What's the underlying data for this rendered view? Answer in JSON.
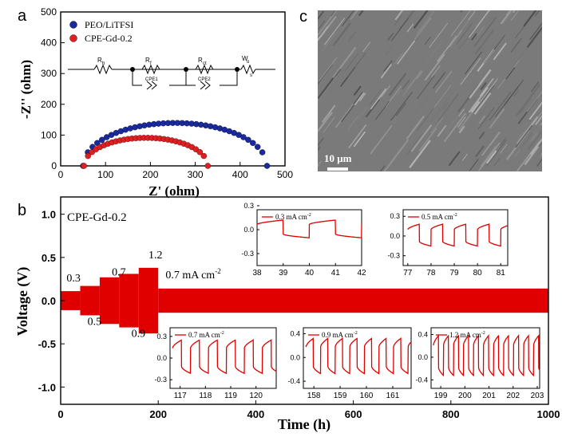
{
  "panel_labels": {
    "a": "a",
    "b": "b",
    "c": "c"
  },
  "colors": {
    "peo": "#1a2a9c",
    "cpe": "#e02020",
    "voltage": "#e00000",
    "sem_bg": "#7a7a7a"
  },
  "sem": {
    "scale_label": "10 μm"
  },
  "circuit": {
    "r_b": "R",
    "r_b_sub": "b",
    "r_f": "R",
    "r_f_sub": "f",
    "r_ct": "R",
    "r_ct_sub": "ct",
    "w": "W",
    "w_sub_top": "o",
    "w_sub_bot": "s",
    "cpe1": "CPE1",
    "cpe2": "CPE2"
  },
  "chart_data": [
    {
      "type": "scatter",
      "panel": "a",
      "xlabel": "Z' (ohm)",
      "ylabel": "-Z'' (ohm)",
      "xlim": [
        0,
        500
      ],
      "ylim": [
        0,
        500
      ],
      "xticks": [
        0,
        100,
        200,
        300,
        400,
        500
      ],
      "yticks": [
        0,
        100,
        200,
        300,
        400,
        500
      ],
      "series": [
        {
          "name": "PEO/LiTFSI",
          "color": "#1a2a9c",
          "center": 255,
          "radius": 205,
          "arc_min": 50,
          "arc_max": 460,
          "points": 40
        },
        {
          "name": "CPE-Gd-0.2",
          "color": "#e02020",
          "center": 190,
          "radius": 138,
          "arc_min": 52,
          "arc_max": 328,
          "points": 32
        }
      ]
    },
    {
      "type": "line",
      "panel": "b",
      "xlabel": "Time (h)",
      "ylabel": "Voltage (V)",
      "xlim": [
        0,
        1000
      ],
      "ylim": [
        -1.2,
        1.2
      ],
      "xticks": [
        0,
        200,
        400,
        600,
        800,
        1000
      ],
      "yticks": [
        -1.0,
        -0.5,
        0.0,
        0.5,
        1.0
      ],
      "annotation_sample": "CPE-Gd-0.2",
      "envelope": [
        {
          "t0": 0,
          "t1": 40,
          "amp": 0.11
        },
        {
          "t0": 40,
          "t1": 80,
          "amp": 0.17
        },
        {
          "t0": 80,
          "t1": 120,
          "amp": 0.27
        },
        {
          "t0": 120,
          "t1": 160,
          "amp": 0.31
        },
        {
          "t0": 160,
          "t1": 200,
          "amp": 0.38
        },
        {
          "t0": 200,
          "t1": 1000,
          "amp": 0.14
        }
      ],
      "rate_labels": [
        {
          "text": "0.3",
          "t": 12,
          "v": 0.22
        },
        {
          "text": "0.5",
          "t": 55,
          "v": -0.28
        },
        {
          "text": "0.7",
          "t": 105,
          "v": 0.29
        },
        {
          "text": "0.9",
          "t": 145,
          "v": -0.42
        },
        {
          "text": "1.2",
          "t": 180,
          "v": 0.49
        },
        {
          "text": "0.7 mA cm",
          "sup": "-2",
          "t": 215,
          "v": 0.26
        }
      ]
    },
    {
      "type": "line",
      "panel": "inset-0.3",
      "label": "0.3 mA cm",
      "sup": "-2",
      "xlim": [
        38,
        42
      ],
      "ylim": [
        -0.45,
        0.25
      ],
      "xticks": [
        38,
        39,
        40,
        41,
        42
      ],
      "yticks": [
        -0.3,
        0.0,
        0.3
      ],
      "cycle_start": 38,
      "period": 2,
      "amp": 0.12
    },
    {
      "type": "line",
      "panel": "inset-0.5",
      "label": "0.5 mA cm",
      "sup": "-2",
      "xlim": [
        76.8,
        81.3
      ],
      "ylim": [
        -0.45,
        0.4
      ],
      "xticks": [
        77,
        78,
        79,
        80,
        81
      ],
      "yticks": [
        -0.3,
        0.0,
        0.3
      ],
      "cycle_start": 77,
      "period": 1,
      "amp": 0.18
    },
    {
      "type": "line",
      "panel": "inset-0.7",
      "label": "0.7 mA cm",
      "sup": "-2",
      "xlim": [
        116.6,
        120.8
      ],
      "ylim": [
        -0.42,
        0.42
      ],
      "xticks": [
        117,
        118,
        119,
        120
      ],
      "yticks": [
        -0.3,
        0.0,
        0.3
      ],
      "cycle_start": 116.7,
      "period": 0.71,
      "amp": 0.25
    },
    {
      "type": "line",
      "panel": "inset-0.9",
      "label": "0.9 mA cm",
      "sup": "-2",
      "xlim": [
        157.6,
        161.7
      ],
      "ylim": [
        -0.52,
        0.5
      ],
      "xticks": [
        158,
        159,
        160,
        161
      ],
      "yticks": [
        -0.4,
        0.0,
        0.4
      ],
      "cycle_start": 157.7,
      "period": 0.555,
      "amp": 0.32
    },
    {
      "type": "line",
      "panel": "inset-1.2",
      "label": "1.2 mA cm",
      "sup": "-2",
      "xlim": [
        198.6,
        203.1
      ],
      "ylim": [
        -0.55,
        0.52
      ],
      "xticks": [
        199,
        200,
        201,
        202,
        203
      ],
      "yticks": [
        -0.4,
        0.0,
        0.4
      ],
      "cycle_start": 198.7,
      "period": 0.415,
      "amp": 0.38
    }
  ]
}
